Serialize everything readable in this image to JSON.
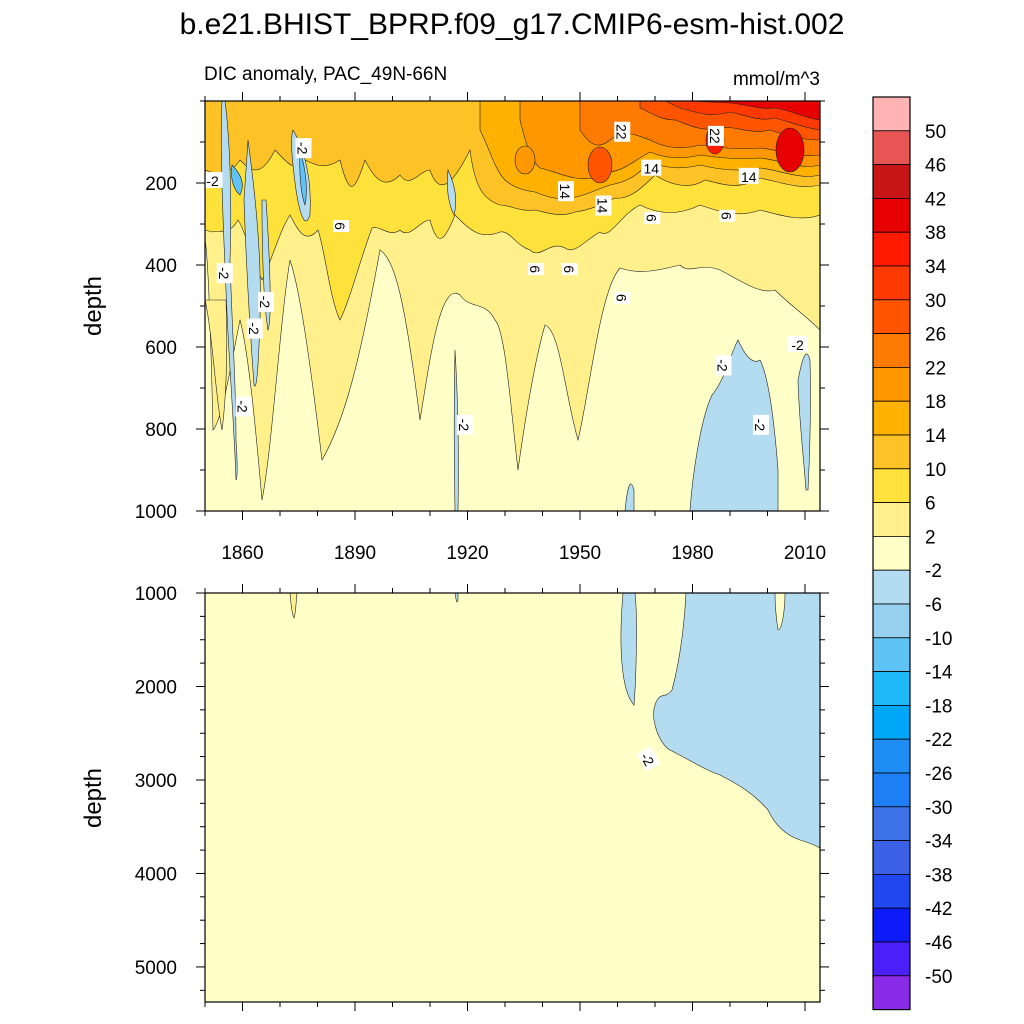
{
  "figure": {
    "title": "b.e21.BHIST_BPRP.f09_g17.CMIP6-esm-hist.002",
    "subtitle_left": "DIC anomaly, PAC_49N-66N",
    "units": "mmol/m^3"
  },
  "colors": {
    "background": "#ffffff",
    "frame": "#000000",
    "contour_line": "#222222"
  },
  "chart_data": [
    {
      "type": "heatmap",
      "panel": "upper",
      "xlabel": "",
      "ylabel": "depth",
      "xlim": [
        1850,
        2014
      ],
      "ylim": [
        1000,
        0
      ],
      "xticks": [
        1860,
        1890,
        1920,
        1950,
        1980,
        2010
      ],
      "xtick_labels": [
        "1860",
        "1890",
        "1920",
        "1950",
        "1980",
        "2010"
      ],
      "yticks": [
        200,
        400,
        600,
        800,
        1000
      ],
      "ytick_labels": [
        "200",
        "400",
        "600",
        "800",
        "1000"
      ],
      "contour_labels": [
        {
          "text": "-2",
          "x": 1876,
          "y": 115,
          "angle": 90
        },
        {
          "text": "-2",
          "x": 1852,
          "y": 195,
          "angle": 0
        },
        {
          "text": "-2",
          "x": 1855,
          "y": 420,
          "angle": 90
        },
        {
          "text": "-2",
          "x": 1866,
          "y": 490,
          "angle": 90
        },
        {
          "text": "-2",
          "x": 1863,
          "y": 555,
          "angle": 90
        },
        {
          "text": "-2",
          "x": 1860,
          "y": 745,
          "angle": 90
        },
        {
          "text": "-2",
          "x": 1919,
          "y": 790,
          "angle": 90
        },
        {
          "text": "6",
          "x": 1886,
          "y": 305,
          "angle": 90
        },
        {
          "text": "6",
          "x": 1938,
          "y": 410,
          "angle": 90
        },
        {
          "text": "6",
          "x": 1947,
          "y": 410,
          "angle": 90
        },
        {
          "text": "6",
          "x": 1961,
          "y": 480,
          "angle": 90
        },
        {
          "text": "6",
          "x": 1969,
          "y": 285,
          "angle": 90
        },
        {
          "text": "6",
          "x": 1989,
          "y": 280,
          "angle": 90
        },
        {
          "text": "14",
          "x": 1946,
          "y": 220,
          "angle": 90
        },
        {
          "text": "14",
          "x": 1956,
          "y": 255,
          "angle": 90
        },
        {
          "text": "14",
          "x": 1969,
          "y": 165,
          "angle": 0
        },
        {
          "text": "14",
          "x": 1995,
          "y": 185,
          "angle": 0
        },
        {
          "text": "22",
          "x": 1961,
          "y": 75,
          "angle": 90
        },
        {
          "text": "22",
          "x": 1986,
          "y": 85,
          "angle": 90
        },
        {
          "text": "-2",
          "x": 1988,
          "y": 645,
          "angle": 90
        },
        {
          "text": "-2",
          "x": 2008,
          "y": 595,
          "angle": 0
        },
        {
          "text": "-2",
          "x": 1998,
          "y": 790,
          "angle": 90
        }
      ]
    },
    {
      "type": "heatmap",
      "panel": "lower",
      "xlabel": "",
      "ylabel": "depth",
      "xlim": [
        1850,
        2014
      ],
      "ylim": [
        5375,
        1000
      ],
      "yticks": [
        1000,
        2000,
        3000,
        4000,
        5000
      ],
      "ytick_labels": [
        "1000",
        "2000",
        "3000",
        "4000",
        "5000"
      ],
      "contour_labels": [
        {
          "text": "-2",
          "x": 1968,
          "y": 2780,
          "angle": 60
        }
      ]
    },
    {
      "type": "colorbar",
      "levels": [
        "50",
        "46",
        "42",
        "38",
        "34",
        "30",
        "26",
        "22",
        "18",
        "14",
        "10",
        "6",
        "2",
        "-2",
        "-6",
        "-10",
        "-14",
        "-18",
        "-22",
        "-26",
        "-30",
        "-34",
        "-38",
        "-42",
        "-46",
        "-50"
      ],
      "colors": [
        "#ffb3b3",
        "#e85555",
        "#c81616",
        "#e60000",
        "#ff1a00",
        "#ff3a00",
        "#ff5500",
        "#ff7a00",
        "#ff9800",
        "#ffb100",
        "#fdc326",
        "#ffe13c",
        "#fff08c",
        "#ffffc8",
        "#b4dcf0",
        "#96d0ee",
        "#5fc4f5",
        "#1eb9f8",
        "#00a6f8",
        "#1e8ef5",
        "#1e7ef5",
        "#3d72e8",
        "#3c61e6",
        "#2147f0",
        "#0d1bf8",
        "#4b1ff8",
        "#8a2be8"
      ]
    }
  ]
}
